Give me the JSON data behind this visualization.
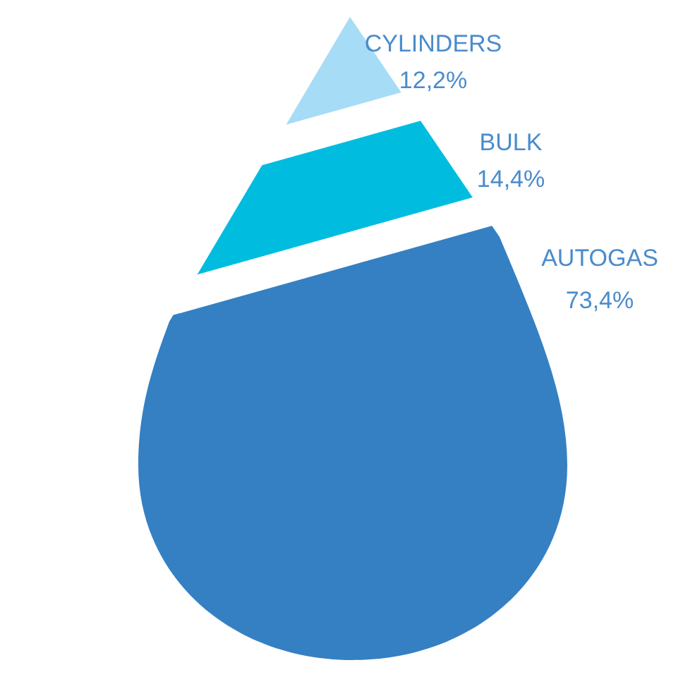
{
  "chart_data": {
    "type": "other",
    "categories": [
      "CYLINDERS",
      "BULK",
      "AUTOGAS"
    ],
    "values": [
      12.2,
      14.4,
      73.4
    ],
    "value_labels": [
      "12,2%",
      "14,4%",
      "73,4%"
    ],
    "colors": [
      "#a6dcf6",
      "#00bde0",
      "#3580c3"
    ]
  }
}
